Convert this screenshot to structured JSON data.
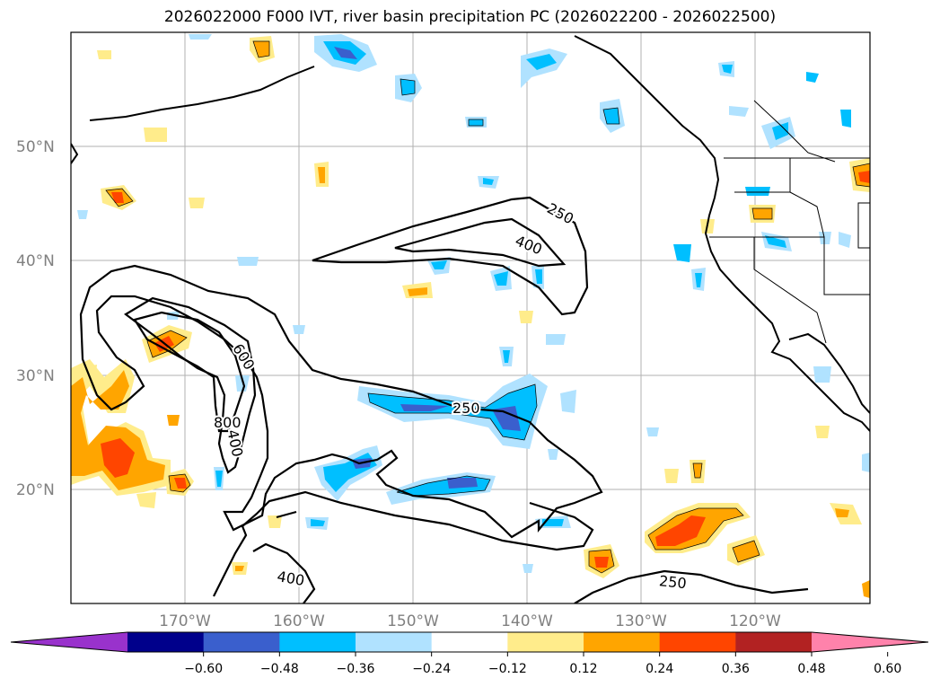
{
  "title": "2026022000 F000 IVT, river basin precipitation PC (2026022200 - 2026022500)",
  "map": {
    "lon_range": [
      -180,
      -110
    ],
    "lat_range": [
      10,
      60
    ],
    "gridlines": true,
    "lat_labels": [
      "50°N",
      "40°N",
      "30°N",
      "20°N"
    ],
    "lon_labels": [
      "170°W",
      "160°W",
      "150°W",
      "140°W",
      "130°W",
      "120°W"
    ]
  },
  "ivt_contour_labels": [
    "250",
    "400",
    "600",
    "800",
    "400",
    "250",
    "400",
    "250"
  ],
  "colorbar": {
    "colors": [
      "#9932cc",
      "#00008b",
      "#3a5fcd",
      "#00bfff",
      "#b0e2ff",
      "#ffffff",
      "#ffec8b",
      "#ffa500",
      "#ff4500",
      "#b22222",
      "#ff82ab"
    ],
    "tick_labels": [
      "−0.60",
      "−0.48",
      "−0.36",
      "−0.24",
      "−0.12",
      "0.12",
      "0.24",
      "0.36",
      "0.48",
      "0.60"
    ]
  }
}
